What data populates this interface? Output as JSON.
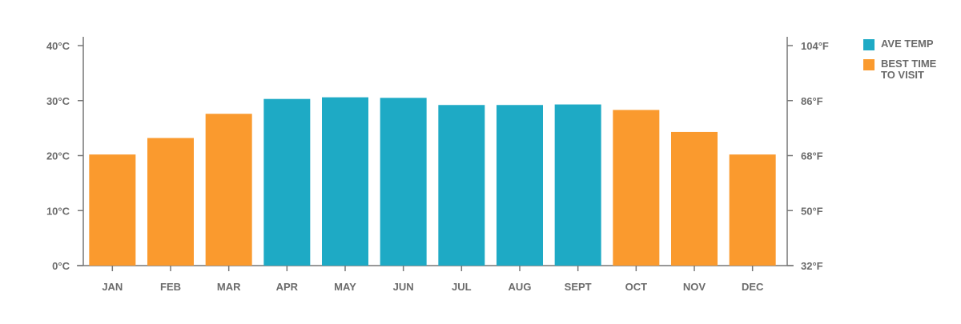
{
  "colors": {
    "ave_temp": "#1eaac5",
    "best_time": "#fa9a2e",
    "axis": "#777777",
    "text": "#6b6b6b"
  },
  "legend": {
    "ave_temp_label": "AVE TEMP",
    "best_time_label": "BEST TIME TO VISIT"
  },
  "chart_data": {
    "type": "bar",
    "categories": [
      "JAN",
      "FEB",
      "MAR",
      "APR",
      "MAY",
      "JUN",
      "JUL",
      "AUG",
      "SEPT",
      "OCT",
      "NOV",
      "DEC"
    ],
    "values": [
      20.2,
      23.2,
      27.6,
      30.3,
      30.6,
      30.5,
      29.2,
      29.2,
      29.3,
      28.3,
      24.3,
      20.2
    ],
    "best_time_to_visit": [
      true,
      true,
      true,
      false,
      false,
      false,
      false,
      false,
      false,
      true,
      true,
      true
    ],
    "ylim": [
      0,
      40
    ],
    "left_axis_ticks": [
      "0°C",
      "10°C",
      "20°C",
      "30°C",
      "40°C"
    ],
    "right_axis_ticks": [
      "32°F",
      "50°F",
      "68°F",
      "86°F",
      "104°F"
    ],
    "legend_position": "right",
    "grid": false
  }
}
